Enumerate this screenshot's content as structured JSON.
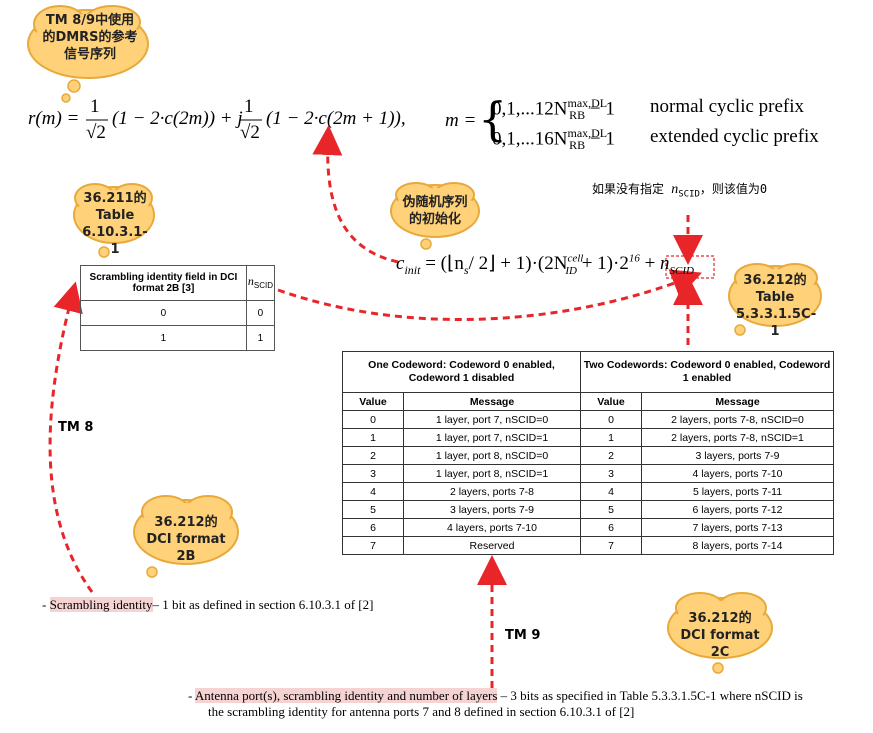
{
  "clouds": {
    "c1": "TM 8/9中使用的DMRS的参考信号序列",
    "c2": "36.211的 Table 6.10.3.1-1",
    "c3": "伪随机序列的初始化",
    "c4": "36.212的 Table 5.3.3.1.5C-1",
    "c5": "36.212的 DCI format 2B",
    "c6": "36.212的 DCI format 2C"
  },
  "formula": {
    "r_lhs": "r(m) = ",
    "r_part2": "(1 − 2·c(2m)) + j",
    "r_part3": "(1 − 2·c(2m + 1)),",
    "m_lhs": "m =",
    "m_row1": "0,1,...12N",
    "m_row1_sup": "max,DL",
    "m_row1_sub": "RB",
    "m_row1_tail": "− 1",
    "m_row1_desc": "normal cyclic prefix",
    "m_row2": "0,1,...16N",
    "m_row2_sup": "max,DL",
    "m_row2_sub": "RB",
    "m_row2_tail": "− 1",
    "m_row2_desc": "extended cyclic prefix",
    "cinit": "c",
    "cinit_sub": "init",
    "cinit_rhs1": " = (⌊n",
    "cinit_rhs1_sub": "s",
    "cinit_rhs2": "/ 2⌋ + 1)·(2N",
    "cinit_rhs2_sup": "cell",
    "cinit_rhs2_sub": "ID",
    "cinit_rhs3": " + 1)·2",
    "cinit_rhs3_sup": "16",
    "cinit_rhs4": " + ",
    "nscid": "n",
    "nscid_sub": "SCID"
  },
  "default_note": {
    "prefix": "如果没有指定 ",
    "var": "n",
    "var_sub": "SCID",
    "suffix": "，则该值为0"
  },
  "table1": {
    "header_col1": "Scrambling identity field in DCI format 2B [3]",
    "header_col2": "n",
    "header_col2_sub": "SCID",
    "rows": [
      [
        "0",
        "0"
      ],
      [
        "1",
        "1"
      ]
    ]
  },
  "table2": {
    "group1": "One Codeword: Codeword 0 enabled, Codeword 1 disabled",
    "group2": "Two Codewords: Codeword 0 enabled, Codeword 1 enabled",
    "col_value": "Value",
    "col_message": "Message",
    "rows": [
      [
        "0",
        "1 layer, port 7, nSCID=0",
        "0",
        "2 layers, ports 7-8, nSCID=0"
      ],
      [
        "1",
        "1 layer, port 7, nSCID=1",
        "1",
        "2 layers, ports 7-8, nSCID=1"
      ],
      [
        "2",
        "1 layer, port 8, nSCID=0",
        "2",
        "3 layers, ports 7-9"
      ],
      [
        "3",
        "1 layer, port 8, nSCID=1",
        "3",
        "4 layers, ports 7-10"
      ],
      [
        "4",
        "2 layers, ports 7-8",
        "4",
        "5 layers, ports 7-11"
      ],
      [
        "5",
        "3 layers, ports 7-9",
        "5",
        "6 layers, ports 7-12"
      ],
      [
        "6",
        "4 layers, ports 7-10",
        "6",
        "7 layers, ports 7-13"
      ],
      [
        "7",
        "Reserved",
        "7",
        "8 layers, ports 7-14"
      ]
    ]
  },
  "labels": {
    "tm8": "TM 8",
    "tm9": "TM 9"
  },
  "notes": {
    "n1_dash": "- ",
    "n1_hl": "Scrambling identity",
    "n1_rest": "– 1 bit as defined in section 6.10.3.1 of [2]",
    "n2_dash": "- ",
    "n2_hl": "Antenna port(s), scrambling identity and number of layers",
    "n2_rest": " – 3 bits as specified in Table 5.3.3.1.5C-1 where nSCID is",
    "n2_line2": "the scrambling identity for antenna ports 7 and 8 defined in section 6.10.3.1 of [2]"
  },
  "colors": {
    "cloud_fill": "#ffd27a",
    "cloud_stroke": "#e8a93a",
    "arrow": "#e8262a",
    "highlight": "#f6d3d3"
  }
}
